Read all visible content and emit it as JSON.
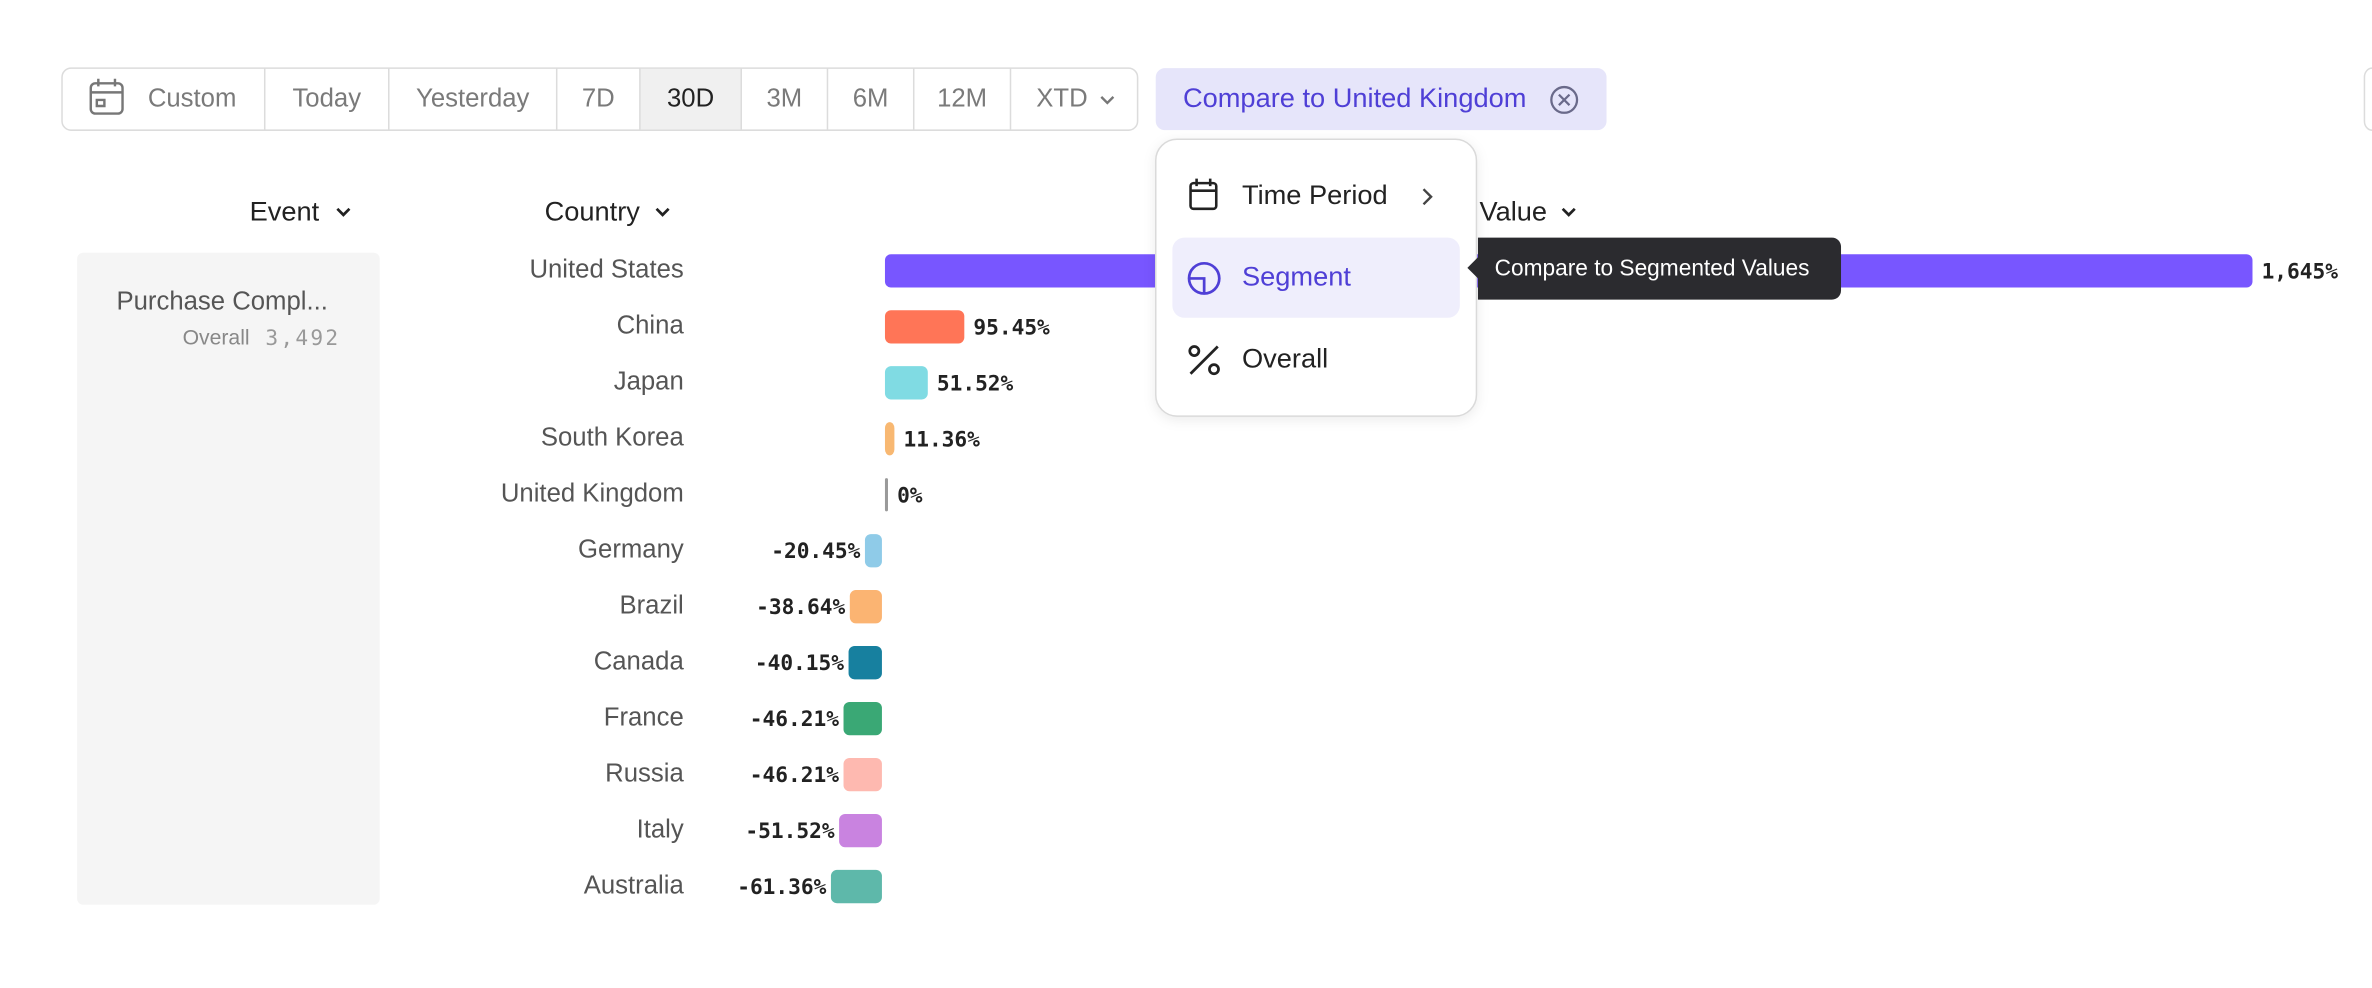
{
  "toolbar": {
    "buttons": [
      "Custom",
      "Today",
      "Yesterday",
      "7D",
      "30D",
      "3M",
      "6M",
      "12M",
      "XTD"
    ],
    "selected": 4
  },
  "compare_chip": "Compare to United Kingdom",
  "columns": {
    "event": "Event",
    "country": "Country",
    "value": "Value"
  },
  "event_card": {
    "name": "Purchase Compl...",
    "label": "Overall",
    "count": "3,492"
  },
  "menu": {
    "items": [
      "Time Period",
      "Segment",
      "Overall"
    ],
    "highlighted": 1
  },
  "tooltip": "Compare to Segmented Values",
  "chart_data": {
    "type": "bar",
    "orientation": "horizontal",
    "categories": [
      "United States",
      "China",
      "Japan",
      "South Korea",
      "United Kingdom",
      "Germany",
      "Brazil",
      "Canada",
      "France",
      "Russia",
      "Italy",
      "Australia"
    ],
    "values": [
      1645,
      95.45,
      51.52,
      11.36,
      0,
      -20.45,
      -38.64,
      -40.15,
      -46.21,
      -46.21,
      -51.52,
      -61.36
    ],
    "value_labels": [
      "1,645%",
      "95.45%",
      "51.52%",
      "11.36%",
      "0%",
      "-20.45%",
      "-38.64%",
      "-40.15%",
      "-46.21%",
      "-46.21%",
      "-51.52%",
      "-61.36%"
    ],
    "colors": [
      "#7856ff",
      "#ff7557",
      "#80dbe3",
      "#f8b872",
      "#9a9a9a",
      "#8fcbe8",
      "#fbb472",
      "#17809f",
      "#3aa875",
      "#feb9b0",
      "#c983e0",
      "#5eb8aa"
    ]
  }
}
